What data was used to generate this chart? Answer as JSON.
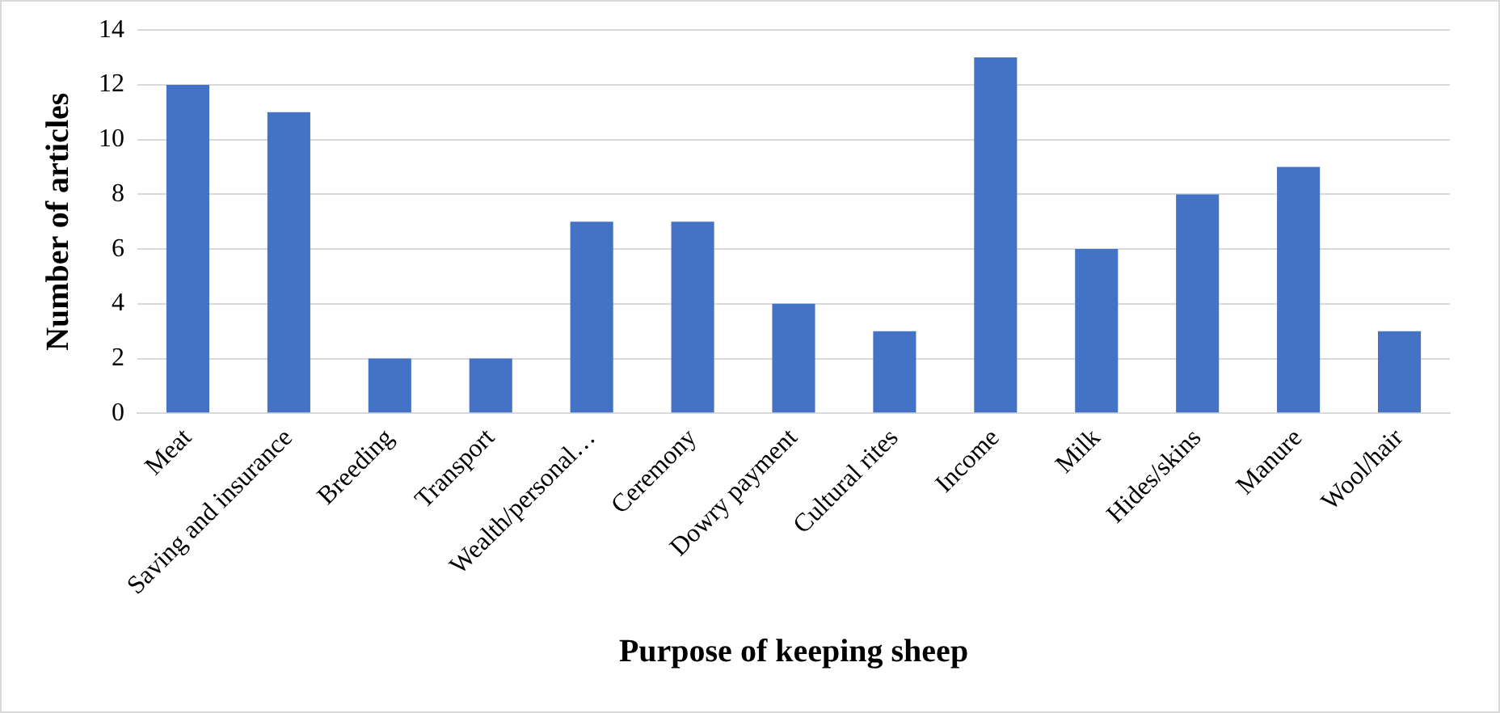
{
  "chart_data": {
    "type": "bar",
    "xlabel": "Purpose of keeping sheep",
    "ylabel": "Number of articles",
    "categories": [
      "Meat",
      "Saving and insurance",
      "Breeding",
      "Transport",
      "Wealth/personal…",
      "Ceremony",
      "Dowry payment",
      "Cultural rites",
      "Income",
      "Milk",
      "Hides/skins",
      "Manure",
      "Wool/hair"
    ],
    "values": [
      12,
      11,
      2,
      2,
      7,
      7,
      4,
      3,
      13,
      6,
      8,
      9,
      3
    ],
    "color": "#4472c4",
    "ylim": [
      0,
      14
    ],
    "yticks": [
      0,
      2,
      4,
      6,
      8,
      10,
      12,
      14
    ],
    "grid": "y",
    "legend": false
  }
}
